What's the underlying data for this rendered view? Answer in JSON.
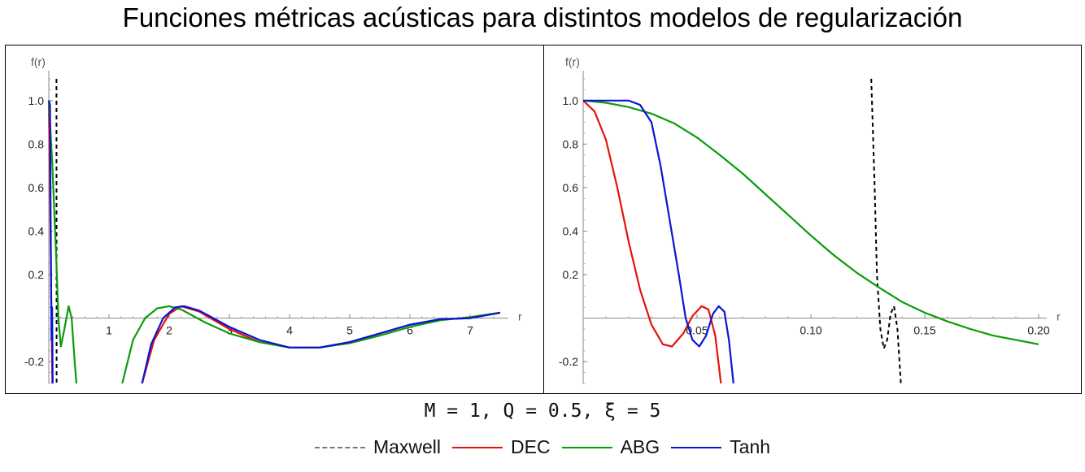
{
  "title": "Funciones métricas acústicas para distintos modelos de regularización",
  "params_label": "M = 1, Q = 0.5, ξ = 5",
  "legend": [
    {
      "name": "Maxwell",
      "color": "#000000",
      "style": "dashed"
    },
    {
      "name": "DEC",
      "color": "#e3120b",
      "style": "solid"
    },
    {
      "name": "ABG",
      "color": "#0a9c0a",
      "style": "solid"
    },
    {
      "name": "Tanh",
      "color": "#0b14d4",
      "style": "solid"
    }
  ],
  "chart_data": [
    {
      "type": "line",
      "xlabel": "r",
      "ylabel": "f(r)",
      "xlim": [
        0,
        7.5
      ],
      "ylim": [
        -0.3,
        1.1
      ],
      "x_ticks": [
        "1",
        "2",
        "3",
        "4",
        "5",
        "6",
        "7"
      ],
      "x_tick_values": [
        1,
        2,
        3,
        4,
        5,
        6,
        7
      ],
      "y_ticks": [
        "-0.2",
        "0.2",
        "0.4",
        "0.6",
        "0.8",
        "1.0"
      ],
      "y_tick_values": [
        -0.2,
        0.2,
        0.4,
        0.6,
        0.8,
        1.0
      ],
      "series": [
        {
          "name": "Maxwell",
          "color": "#000000",
          "dashed": true,
          "segments": [
            [
              [
                0.127,
                1.1
              ],
              [
                0.13,
                -0.3
              ]
            ]
          ]
        },
        {
          "name": "DEC",
          "color": "#e3120b",
          "segments": [
            [
              [
                0.0,
                1.0
              ],
              [
                0.02,
                0.6
              ],
              [
                0.04,
                0.1
              ],
              [
                0.06,
                -0.3
              ]
            ],
            [
              [
                1.55,
                -0.3
              ],
              [
                1.75,
                -0.1
              ],
              [
                2.0,
                0.02
              ],
              [
                2.2,
                0.055
              ],
              [
                2.5,
                0.03
              ],
              [
                3.0,
                -0.05
              ],
              [
                3.5,
                -0.11
              ],
              [
                4.0,
                -0.135
              ],
              [
                4.5,
                -0.135
              ],
              [
                5.0,
                -0.11
              ],
              [
                5.5,
                -0.07
              ],
              [
                6.0,
                -0.03
              ],
              [
                6.5,
                -0.005
              ],
              [
                7.0,
                0.0
              ],
              [
                7.5,
                0.025
              ]
            ]
          ]
        },
        {
          "name": "ABG",
          "color": "#0a9c0a",
          "segments": [
            [
              [
                0.0,
                1.0
              ],
              [
                0.06,
                0.7
              ],
              [
                0.12,
                0.3
              ],
              [
                0.16,
                0.0
              ],
              [
                0.2,
                -0.13
              ],
              [
                0.26,
                -0.05
              ],
              [
                0.33,
                0.055
              ],
              [
                0.38,
                0.0
              ],
              [
                0.43,
                -0.2
              ],
              [
                0.46,
                -0.3
              ]
            ],
            [
              [
                1.22,
                -0.3
              ],
              [
                1.4,
                -0.1
              ],
              [
                1.6,
                0.0
              ],
              [
                1.8,
                0.045
              ],
              [
                2.0,
                0.055
              ],
              [
                2.2,
                0.04
              ],
              [
                2.6,
                -0.02
              ],
              [
                3.0,
                -0.07
              ],
              [
                3.5,
                -0.11
              ],
              [
                4.0,
                -0.135
              ],
              [
                4.5,
                -0.135
              ],
              [
                5.0,
                -0.115
              ],
              [
                5.5,
                -0.08
              ],
              [
                6.0,
                -0.04
              ],
              [
                6.5,
                -0.01
              ],
              [
                7.0,
                0.005
              ],
              [
                7.5,
                0.025
              ]
            ]
          ]
        },
        {
          "name": "Tanh",
          "color": "#0b14d4",
          "segments": [
            [
              [
                0.0,
                1.0
              ],
              [
                0.02,
                0.98
              ],
              [
                0.03,
                0.5
              ],
              [
                0.045,
                -0.1
              ],
              [
                0.055,
                0.05
              ],
              [
                0.065,
                -0.3
              ]
            ],
            [
              [
                1.55,
                -0.3
              ],
              [
                1.7,
                -0.12
              ],
              [
                1.9,
                0.0
              ],
              [
                2.1,
                0.05
              ],
              [
                2.25,
                0.055
              ],
              [
                2.5,
                0.035
              ],
              [
                3.0,
                -0.04
              ],
              [
                3.5,
                -0.1
              ],
              [
                4.0,
                -0.135
              ],
              [
                4.5,
                -0.135
              ],
              [
                5.0,
                -0.11
              ],
              [
                5.5,
                -0.07
              ],
              [
                6.0,
                -0.03
              ],
              [
                6.5,
                -0.005
              ],
              [
                7.0,
                0.0
              ],
              [
                7.5,
                0.025
              ]
            ]
          ]
        }
      ]
    },
    {
      "type": "line",
      "xlabel": "r",
      "ylabel": "f(r)",
      "xlim": [
        0,
        0.2
      ],
      "ylim": [
        -0.3,
        1.1
      ],
      "x_ticks": [
        "0.05",
        "0.10",
        "0.15",
        "0.20"
      ],
      "x_tick_values": [
        0.05,
        0.1,
        0.15,
        0.2
      ],
      "y_ticks": [
        "-0.2",
        "0.2",
        "0.4",
        "0.6",
        "0.8",
        "1.0"
      ],
      "y_tick_values": [
        -0.2,
        0.2,
        0.4,
        0.6,
        0.8,
        1.0
      ],
      "series": [
        {
          "name": "Maxwell",
          "color": "#000000",
          "dashed": true,
          "segments": [
            [
              [
                0.1265,
                1.1
              ],
              [
                0.128,
                0.6
              ],
              [
                0.129,
                0.2
              ],
              [
                0.1305,
                -0.05
              ],
              [
                0.132,
                -0.14
              ],
              [
                0.1335,
                -0.1
              ],
              [
                0.135,
                0.02
              ],
              [
                0.1365,
                0.055
              ],
              [
                0.138,
                -0.05
              ],
              [
                0.1395,
                -0.3
              ]
            ]
          ]
        },
        {
          "name": "DEC",
          "color": "#e3120b",
          "segments": [
            [
              [
                0.0,
                1.0
              ],
              [
                0.005,
                0.95
              ],
              [
                0.01,
                0.82
              ],
              [
                0.015,
                0.6
              ],
              [
                0.02,
                0.35
              ],
              [
                0.025,
                0.13
              ],
              [
                0.03,
                -0.03
              ],
              [
                0.035,
                -0.12
              ],
              [
                0.039,
                -0.13
              ],
              [
                0.044,
                -0.07
              ],
              [
                0.048,
                0.01
              ],
              [
                0.052,
                0.055
              ],
              [
                0.055,
                0.04
              ],
              [
                0.058,
                -0.08
              ],
              [
                0.0605,
                -0.3
              ]
            ]
          ]
        },
        {
          "name": "ABG",
          "color": "#0a9c0a",
          "segments": [
            [
              [
                0.0,
                1.0
              ],
              [
                0.01,
                0.99
              ],
              [
                0.02,
                0.97
              ],
              [
                0.03,
                0.94
              ],
              [
                0.04,
                0.895
              ],
              [
                0.05,
                0.83
              ],
              [
                0.06,
                0.75
              ],
              [
                0.07,
                0.665
              ],
              [
                0.08,
                0.57
              ],
              [
                0.09,
                0.475
              ],
              [
                0.1,
                0.38
              ],
              [
                0.11,
                0.29
              ],
              [
                0.12,
                0.21
              ],
              [
                0.13,
                0.14
              ],
              [
                0.14,
                0.075
              ],
              [
                0.15,
                0.025
              ],
              [
                0.16,
                -0.015
              ],
              [
                0.17,
                -0.05
              ],
              [
                0.18,
                -0.08
              ],
              [
                0.19,
                -0.1
              ],
              [
                0.2,
                -0.12
              ]
            ]
          ]
        },
        {
          "name": "Tanh",
          "color": "#0b14d4",
          "segments": [
            [
              [
                0.0,
                1.0
              ],
              [
                0.01,
                1.0
              ],
              [
                0.02,
                1.0
              ],
              [
                0.025,
                0.98
              ],
              [
                0.03,
                0.9
              ],
              [
                0.034,
                0.7
              ],
              [
                0.038,
                0.45
              ],
              [
                0.042,
                0.2
              ],
              [
                0.045,
                0.0
              ],
              [
                0.048,
                -0.1
              ],
              [
                0.051,
                -0.13
              ],
              [
                0.054,
                -0.08
              ],
              [
                0.057,
                0.02
              ],
              [
                0.0595,
                0.055
              ],
              [
                0.062,
                0.03
              ],
              [
                0.064,
                -0.1
              ],
              [
                0.066,
                -0.3
              ]
            ]
          ]
        }
      ]
    }
  ]
}
